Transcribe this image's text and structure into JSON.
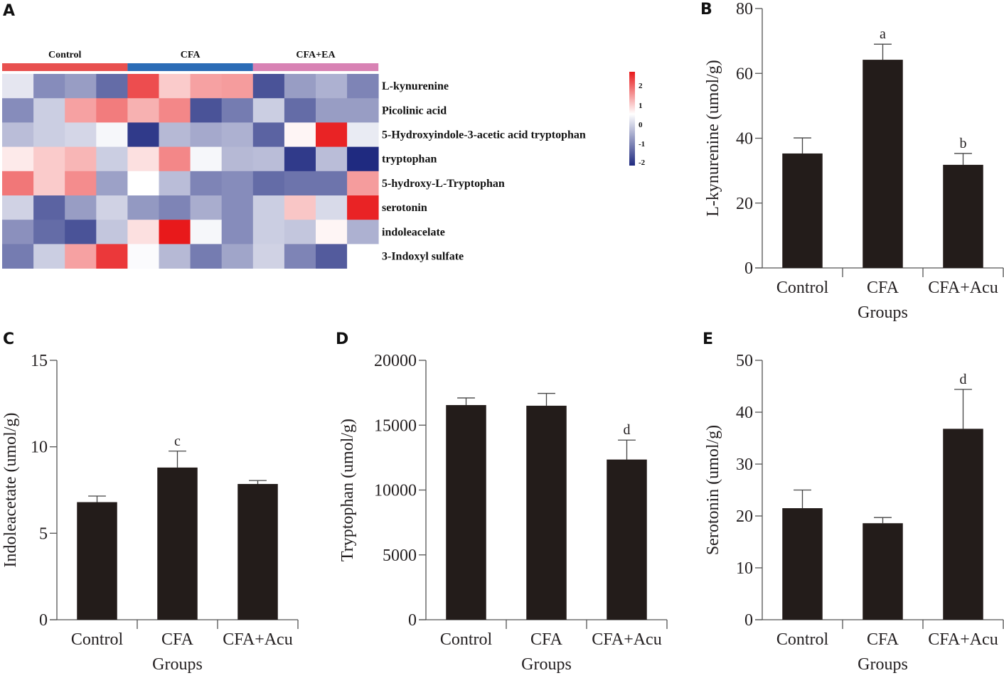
{
  "figure": {
    "panel_letters": [
      "A",
      "B",
      "C",
      "D",
      "E"
    ]
  },
  "chart_data": [
    {
      "panel": "A",
      "type": "heatmap",
      "title": "",
      "groups": [
        {
          "label": "Control",
          "color": "#e8504f",
          "columns": 4
        },
        {
          "label": "CFA",
          "color": "#2b6cb6",
          "columns": 4
        },
        {
          "label": "CFA+EA",
          "color": "#d882b4",
          "columns": 4
        }
      ],
      "rows": [
        "L-kynurenine",
        "Picolinic acid",
        "5-Hydroxyindole-3-acetic acid tryptophan",
        "tryptophan",
        "5-hydroxy-L-Tryptophan",
        "serotonin",
        "indoleacelate",
        "3-Indoxyl sulfate"
      ],
      "values": [
        [
          0.1,
          -1.0,
          -0.8,
          -1.4,
          2.1,
          0.9,
          1.3,
          1.35,
          -1.7,
          -0.8,
          -0.55,
          -1.1
        ],
        [
          -1.0,
          -0.2,
          1.3,
          1.65,
          1.15,
          1.55,
          -1.7,
          -1.2,
          -0.2,
          -1.4,
          -0.8,
          -0.8
        ],
        [
          -0.4,
          -0.2,
          -0.1,
          0.3,
          -2.0,
          -0.45,
          -0.65,
          -0.55,
          -1.5,
          0.5,
          2.5,
          0.15
        ],
        [
          0.6,
          0.9,
          1.1,
          -0.2,
          0.7,
          1.55,
          0.3,
          -0.45,
          -0.4,
          -2.0,
          -0.4,
          -2.2
        ],
        [
          1.7,
          0.9,
          1.5,
          -0.75,
          0.4,
          -0.4,
          -1.1,
          -1.0,
          -1.4,
          -1.3,
          -1.3,
          1.35
        ],
        [
          -0.15,
          -1.5,
          -0.8,
          -0.15,
          -0.85,
          -1.1,
          -0.6,
          -1.0,
          -0.2,
          0.95,
          -0.05,
          2.5
        ],
        [
          -0.95,
          -1.4,
          -1.7,
          -0.3,
          0.7,
          2.6,
          0.3,
          -1.0,
          -0.2,
          -0.3,
          0.5,
          -0.55
        ],
        [
          -1.2,
          -0.2,
          1.3,
          2.3,
          0.35,
          -0.45,
          -1.2,
          -0.7,
          -0.15,
          -1.1,
          -1.6,
          0.4
        ]
      ],
      "color_scale": {
        "min": -2,
        "max": 2,
        "low_color": "#1f2a80",
        "mid_color": "#ffffff",
        "high_color": "#e8191b",
        "ticks": [
          "2",
          "1",
          "0",
          "-1",
          "-2"
        ]
      },
      "legend": "right"
    },
    {
      "panel": "B",
      "type": "bar",
      "categories": [
        "Control",
        "CFA",
        "CFA+Acu"
      ],
      "values": [
        35.3,
        64.2,
        31.8
      ],
      "errors": [
        4.8,
        4.8,
        3.5
      ],
      "significance": [
        "",
        "a",
        "b"
      ],
      "title": "",
      "xlabel": "Groups",
      "ylabel": "L-kynurenine (umol/g)",
      "ylim": [
        0,
        80
      ],
      "yticks": [
        "0",
        "20",
        "40",
        "60",
        "80"
      ],
      "ytick_values": [
        0,
        20,
        40,
        60,
        80
      ],
      "grid": false
    },
    {
      "panel": "C",
      "type": "bar",
      "categories": [
        "Control",
        "CFA",
        "CFA+Acu"
      ],
      "values": [
        6.8,
        8.8,
        7.85
      ],
      "errors": [
        0.35,
        0.95,
        0.2
      ],
      "significance": [
        "",
        "c",
        ""
      ],
      "title": "",
      "xlabel": "Groups",
      "ylabel": "Indoleacetate (umol/g)",
      "ylim": [
        0,
        15
      ],
      "yticks": [
        "0",
        "5",
        "10",
        "15"
      ],
      "ytick_values": [
        0,
        5,
        10,
        15
      ],
      "grid": false
    },
    {
      "panel": "D",
      "type": "bar",
      "categories": [
        "Control",
        "CFA",
        "CFA+Acu"
      ],
      "values": [
        16550,
        16500,
        12350
      ],
      "errors": [
        550,
        950,
        1500
      ],
      "significance": [
        "",
        "",
        "d"
      ],
      "title": "",
      "xlabel": "Groups",
      "ylabel": "Tryptophan (umol/g)",
      "ylim": [
        0,
        20000
      ],
      "yticks": [
        "0",
        "5000",
        "10000",
        "15000",
        "20000"
      ],
      "ytick_values": [
        0,
        5000,
        10000,
        15000,
        20000
      ],
      "grid": false
    },
    {
      "panel": "E",
      "type": "bar",
      "categories": [
        "Control",
        "CFA",
        "CFA+Acu"
      ],
      "values": [
        21.5,
        18.6,
        36.8
      ],
      "errors": [
        3.5,
        1.1,
        7.6
      ],
      "significance": [
        "",
        "",
        "d"
      ],
      "title": "",
      "xlabel": "Groups",
      "ylabel": "Serotonin (umol/g)",
      "ylim": [
        0,
        50
      ],
      "yticks": [
        "0",
        "10",
        "20",
        "30",
        "40",
        "50"
      ],
      "ytick_values": [
        0,
        10,
        20,
        30,
        40,
        50
      ],
      "grid": false
    }
  ]
}
